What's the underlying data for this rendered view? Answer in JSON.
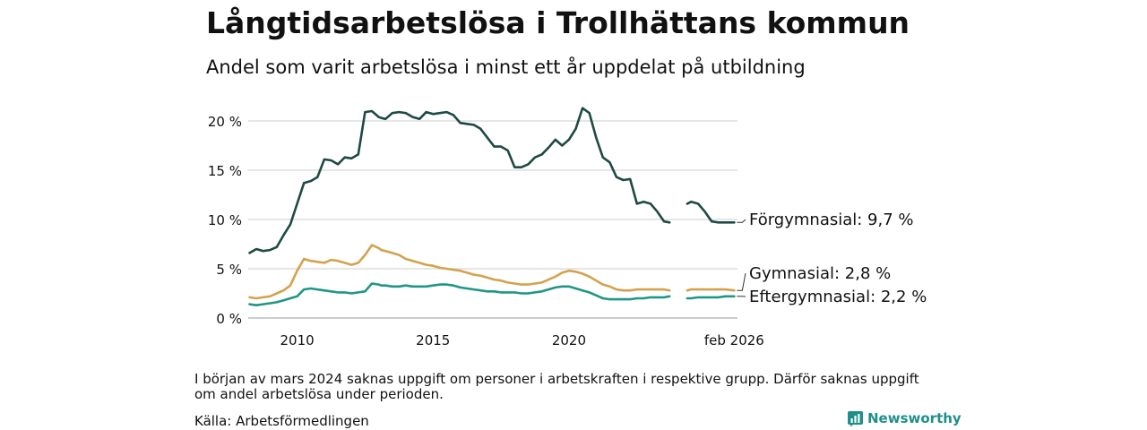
{
  "chart_data": {
    "type": "line",
    "title": "Långtidsarbetslösa i Trollhättans kommun",
    "subtitle": "Andel som varit arbetslösa i minst ett år uppdelat på utbildning",
    "xlabel": "",
    "ylabel": "",
    "xlim": [
      2008.2,
      2026.2
    ],
    "ylim": [
      0,
      22
    ],
    "grid": true,
    "x_ticks": [
      {
        "value": 2010,
        "label": "2010"
      },
      {
        "value": 2015,
        "label": "2015"
      },
      {
        "value": 2020,
        "label": "2020"
      },
      {
        "value": 2026.08,
        "label": "feb 2026"
      }
    ],
    "y_ticks": [
      {
        "value": 0,
        "label": "0 %"
      },
      {
        "value": 5,
        "label": "5 %"
      },
      {
        "value": 10,
        "label": "10 %"
      },
      {
        "value": 15,
        "label": "15 %"
      },
      {
        "value": 20,
        "label": "20 %"
      }
    ],
    "gap": [
      2023.75,
      2024.25
    ],
    "series": [
      {
        "name": "Förgymnasial",
        "label": "Förgymnasial: 9,7 %",
        "color": "#1e4a43",
        "x": [
          2008.25,
          2008.5,
          2008.75,
          2009.0,
          2009.25,
          2009.5,
          2009.75,
          2010.0,
          2010.25,
          2010.5,
          2010.75,
          2011.0,
          2011.25,
          2011.5,
          2011.75,
          2012.0,
          2012.25,
          2012.5,
          2012.75,
          2013.0,
          2013.1,
          2013.25,
          2013.5,
          2013.75,
          2014.0,
          2014.25,
          2014.5,
          2014.75,
          2015.0,
          2015.25,
          2015.5,
          2015.75,
          2016.0,
          2016.25,
          2016.5,
          2016.75,
          2017.0,
          2017.25,
          2017.5,
          2017.75,
          2018.0,
          2018.25,
          2018.5,
          2018.75,
          2019.0,
          2019.25,
          2019.5,
          2019.75,
          2020.0,
          2020.25,
          2020.5,
          2020.75,
          2021.0,
          2021.25,
          2021.5,
          2021.75,
          2022.0,
          2022.25,
          2022.5,
          2022.75,
          2023.0,
          2023.25,
          2023.5,
          2023.7,
          2024.35,
          2024.5,
          2024.75,
          2025.0,
          2025.25,
          2025.5,
          2025.75,
          2026.08
        ],
        "values": [
          6.6,
          7.0,
          6.8,
          6.9,
          7.2,
          8.4,
          9.5,
          11.6,
          13.7,
          13.9,
          14.3,
          16.1,
          16.0,
          15.6,
          16.3,
          16.2,
          16.6,
          20.9,
          21.0,
          20.4,
          20.3,
          20.2,
          20.8,
          20.9,
          20.8,
          20.4,
          20.2,
          20.9,
          20.7,
          20.8,
          20.9,
          20.6,
          19.8,
          19.7,
          19.6,
          19.2,
          18.3,
          17.4,
          17.4,
          17.0,
          15.3,
          15.3,
          15.6,
          16.3,
          16.6,
          17.3,
          18.1,
          17.5,
          18.1,
          19.2,
          21.3,
          20.8,
          18.3,
          16.3,
          15.8,
          14.3,
          14.0,
          14.1,
          11.6,
          11.8,
          11.6,
          10.8,
          9.8,
          9.7,
          11.6,
          11.8,
          11.6,
          10.8,
          9.8,
          9.7,
          9.7,
          9.7
        ]
      },
      {
        "name": "Gymnasial",
        "label": "Gymnasial: 2,8 %",
        "color": "#d4a24f",
        "x": [
          2008.25,
          2008.5,
          2008.75,
          2009.0,
          2009.25,
          2009.5,
          2009.75,
          2010.0,
          2010.25,
          2010.5,
          2010.75,
          2011.0,
          2011.25,
          2011.5,
          2011.75,
          2012.0,
          2012.25,
          2012.5,
          2012.75,
          2013.0,
          2013.1,
          2013.25,
          2013.5,
          2013.75,
          2014.0,
          2014.25,
          2014.5,
          2014.75,
          2015.0,
          2015.25,
          2015.5,
          2015.75,
          2016.0,
          2016.25,
          2016.5,
          2016.75,
          2017.0,
          2017.25,
          2017.5,
          2017.75,
          2018.0,
          2018.25,
          2018.5,
          2018.75,
          2019.0,
          2019.25,
          2019.5,
          2019.75,
          2020.0,
          2020.25,
          2020.5,
          2020.75,
          2021.0,
          2021.25,
          2021.5,
          2021.75,
          2022.0,
          2022.25,
          2022.5,
          2022.75,
          2023.0,
          2023.25,
          2023.5,
          2023.7,
          2024.35,
          2024.5,
          2024.75,
          2025.0,
          2025.25,
          2025.5,
          2025.75,
          2026.08
        ],
        "values": [
          2.1,
          2.0,
          2.1,
          2.2,
          2.5,
          2.8,
          3.3,
          4.8,
          6.0,
          5.8,
          5.7,
          5.6,
          5.9,
          5.8,
          5.6,
          5.4,
          5.6,
          6.4,
          7.4,
          7.1,
          6.9,
          6.8,
          6.6,
          6.4,
          6.0,
          5.8,
          5.6,
          5.4,
          5.3,
          5.1,
          5.0,
          4.9,
          4.8,
          4.6,
          4.4,
          4.3,
          4.1,
          3.9,
          3.8,
          3.6,
          3.5,
          3.4,
          3.4,
          3.5,
          3.6,
          3.9,
          4.2,
          4.6,
          4.8,
          4.7,
          4.5,
          4.2,
          3.8,
          3.4,
          3.2,
          2.9,
          2.8,
          2.8,
          2.9,
          2.9,
          2.9,
          2.9,
          2.9,
          2.8,
          2.8,
          2.9,
          2.9,
          2.9,
          2.9,
          2.9,
          2.9,
          2.8
        ]
      },
      {
        "name": "Eftergymnasial",
        "label": "Eftergymnasial: 2,2 %",
        "color": "#1f9686",
        "x": [
          2008.25,
          2008.5,
          2008.75,
          2009.0,
          2009.25,
          2009.5,
          2009.75,
          2010.0,
          2010.25,
          2010.5,
          2010.75,
          2011.0,
          2011.25,
          2011.5,
          2011.75,
          2012.0,
          2012.25,
          2012.5,
          2012.75,
          2013.0,
          2013.1,
          2013.25,
          2013.5,
          2013.75,
          2014.0,
          2014.25,
          2014.5,
          2014.75,
          2015.0,
          2015.25,
          2015.5,
          2015.75,
          2016.0,
          2016.25,
          2016.5,
          2016.75,
          2017.0,
          2017.25,
          2017.5,
          2017.75,
          2018.0,
          2018.25,
          2018.5,
          2018.75,
          2019.0,
          2019.25,
          2019.5,
          2019.75,
          2020.0,
          2020.25,
          2020.5,
          2020.75,
          2021.0,
          2021.25,
          2021.5,
          2021.75,
          2022.0,
          2022.25,
          2022.5,
          2022.75,
          2023.0,
          2023.25,
          2023.5,
          2023.7,
          2024.35,
          2024.5,
          2024.75,
          2025.0,
          2025.25,
          2025.5,
          2025.75,
          2026.08
        ],
        "values": [
          1.4,
          1.3,
          1.4,
          1.5,
          1.6,
          1.8,
          2.0,
          2.2,
          2.9,
          3.0,
          2.9,
          2.8,
          2.7,
          2.6,
          2.6,
          2.5,
          2.6,
          2.7,
          3.5,
          3.4,
          3.3,
          3.3,
          3.2,
          3.2,
          3.3,
          3.2,
          3.2,
          3.2,
          3.3,
          3.4,
          3.4,
          3.3,
          3.1,
          3.0,
          2.9,
          2.8,
          2.7,
          2.7,
          2.6,
          2.6,
          2.6,
          2.5,
          2.5,
          2.6,
          2.7,
          2.9,
          3.1,
          3.2,
          3.2,
          3.0,
          2.8,
          2.6,
          2.3,
          2.0,
          1.9,
          1.9,
          1.9,
          1.9,
          2.0,
          2.0,
          2.1,
          2.1,
          2.1,
          2.2,
          2.0,
          2.0,
          2.1,
          2.1,
          2.1,
          2.1,
          2.2,
          2.2
        ]
      }
    ]
  },
  "footer": {
    "note": "I början av mars 2024 saknas uppgift om personer i arbetskraften i respektive grupp. Därför saknas uppgift om andel arbetslösa under perioden.",
    "source": "Källa: Arbetsförmedlingen",
    "brand": "Newsworthy",
    "brand_color": "#1f8f8a"
  }
}
